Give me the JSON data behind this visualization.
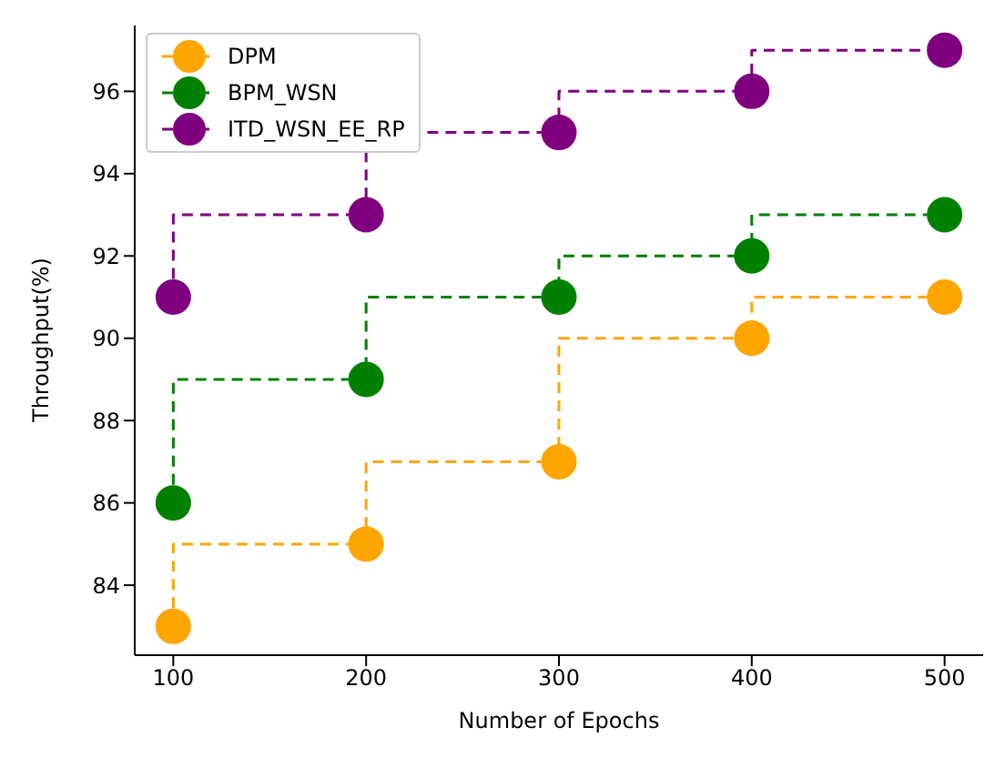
{
  "chart_data": {
    "type": "step",
    "xlabel": "Number of Epochs",
    "ylabel": "Throughput(%)",
    "x": [
      100,
      200,
      300,
      400,
      500
    ],
    "series": [
      {
        "name": "DPM",
        "color": "#ffa500",
        "values": [
          83,
          85,
          87,
          90,
          91
        ]
      },
      {
        "name": "BPM_WSN",
        "color": "#008000",
        "values": [
          86,
          89,
          91,
          92,
          93
        ]
      },
      {
        "name": "ITD_WSN_EE_RP",
        "color": "#800080",
        "values": [
          91,
          93,
          95,
          96,
          97
        ]
      }
    ],
    "xlim": [
      80,
      520
    ],
    "xticks": [
      100,
      200,
      300,
      400,
      500
    ],
    "ylim": [
      82.3,
      97.6
    ],
    "yticks": [
      84,
      86,
      88,
      90,
      92,
      94,
      96
    ],
    "legend": "top left",
    "marker": "circle",
    "line_style": "dashed"
  }
}
